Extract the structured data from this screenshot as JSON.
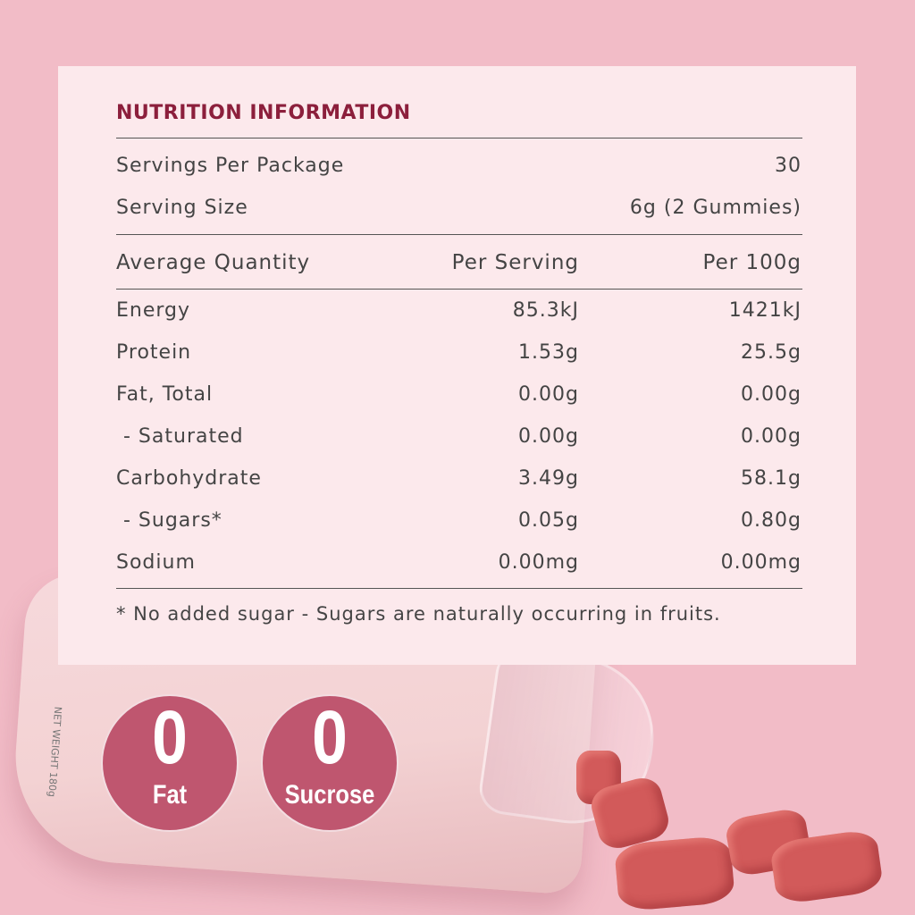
{
  "nutrition": {
    "title": "NUTRITION INFORMATION",
    "servings_label": "Servings Per Package",
    "servings_value": "30",
    "size_label": "Serving Size",
    "size_value": "6g (2 Gummies)",
    "headers": [
      "Average Quantity",
      "Per Serving",
      "Per 100g"
    ],
    "rows": [
      {
        "name": "Energy",
        "serving": "85.3kJ",
        "per100": "1421kJ"
      },
      {
        "name": "Protein",
        "serving": "1.53g",
        "per100": "25.5g"
      },
      {
        "name": "Fat, Total",
        "serving": "0.00g",
        "per100": "0.00g"
      },
      {
        "name": " - Saturated",
        "serving": "0.00g",
        "per100": "0.00g"
      },
      {
        "name": "Carbohydrate",
        "serving": "3.49g",
        "per100": "58.1g"
      },
      {
        "name": " - Sugars*",
        "serving": "0.05g",
        "per100": "0.80g"
      },
      {
        "name": "Sodium",
        "serving": "0.00mg",
        "per100": "0.00mg"
      }
    ],
    "footnote": "* No added sugar - Sugars are naturally occurring in fruits."
  },
  "badges": [
    {
      "number": "0",
      "word": "Fat"
    },
    {
      "number": "0",
      "word": "Sucrose"
    }
  ],
  "bottle_label": {
    "net_weight": "NET WEIGHT 180g"
  },
  "colors": {
    "background": "#f2bcc7",
    "panel": "#fce9ec",
    "title": "#8c1f3c",
    "badge": "#bf566f"
  }
}
